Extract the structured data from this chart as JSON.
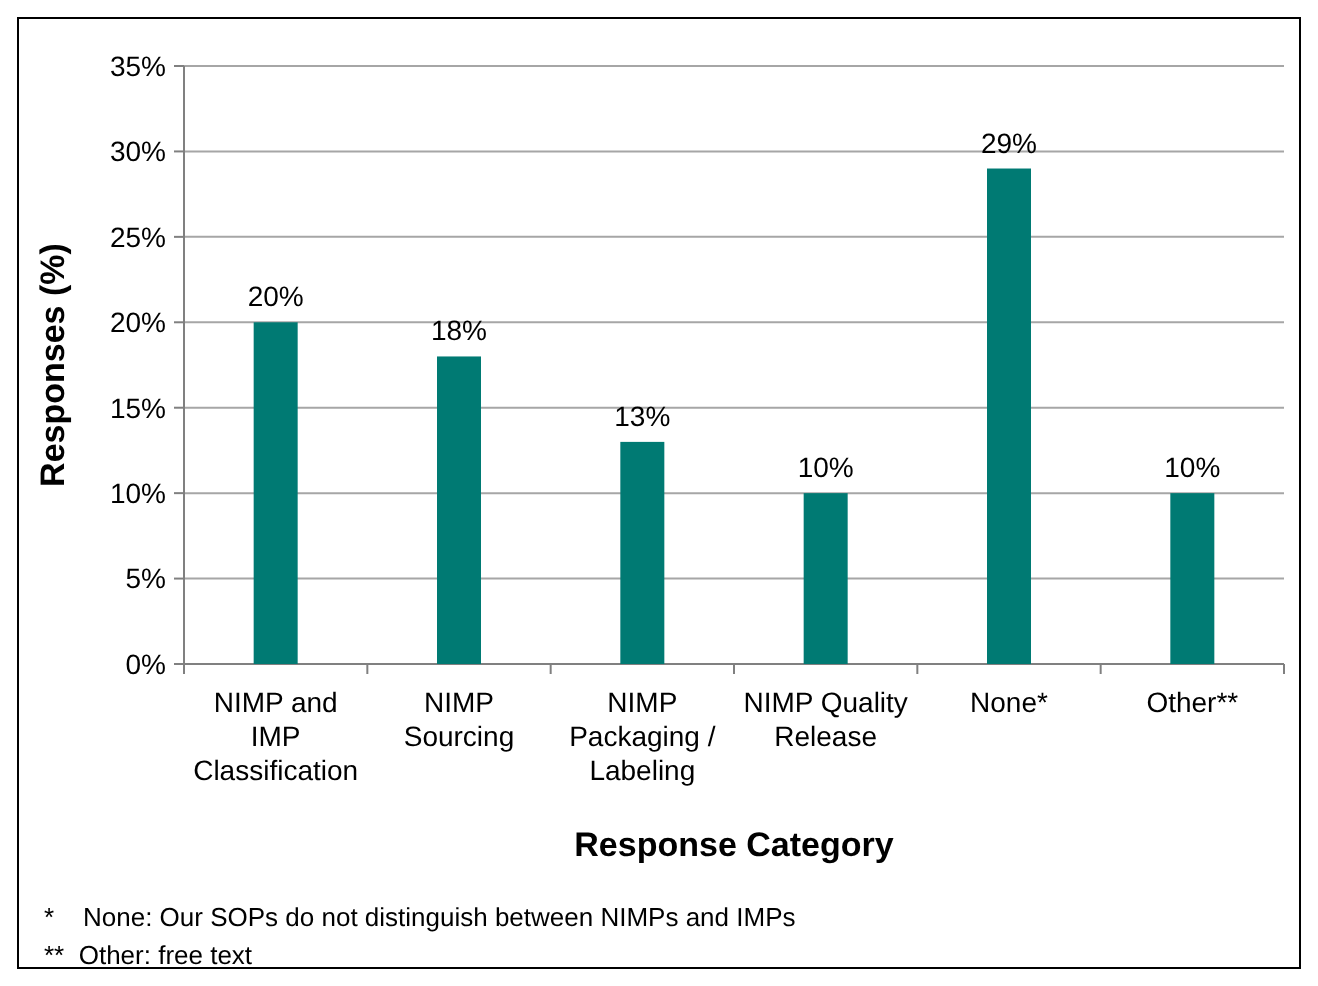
{
  "chart_data": {
    "type": "bar",
    "xlabel": "Response Category",
    "ylabel": "Responses (%)",
    "categories": [
      "NIMP and IMP Classification",
      "NIMP Sourcing",
      "NIMP Packaging / Labeling",
      "NIMP Quality Release",
      "None*",
      "Other**"
    ],
    "values": [
      20,
      18,
      13,
      10,
      29,
      10
    ],
    "value_labels": [
      "20%",
      "18%",
      "13%",
      "10%",
      "29%",
      "10%"
    ],
    "color": "#007a73",
    "ylim": [
      0,
      35
    ],
    "yticks": [
      {
        "value": 0,
        "label": "0%"
      },
      {
        "value": 5,
        "label": "5%"
      },
      {
        "value": 10,
        "label": "10%"
      },
      {
        "value": 15,
        "label": "15%"
      },
      {
        "value": 20,
        "label": "20%"
      },
      {
        "value": 25,
        "label": "25%"
      },
      {
        "value": 30,
        "label": "30%"
      },
      {
        "value": 35,
        "label": "35%"
      }
    ],
    "grid": "y",
    "annotations": [
      "*    None: Our SOPs do not distinguish between NIMPs and IMPs",
      "**  Other: free text"
    ]
  }
}
